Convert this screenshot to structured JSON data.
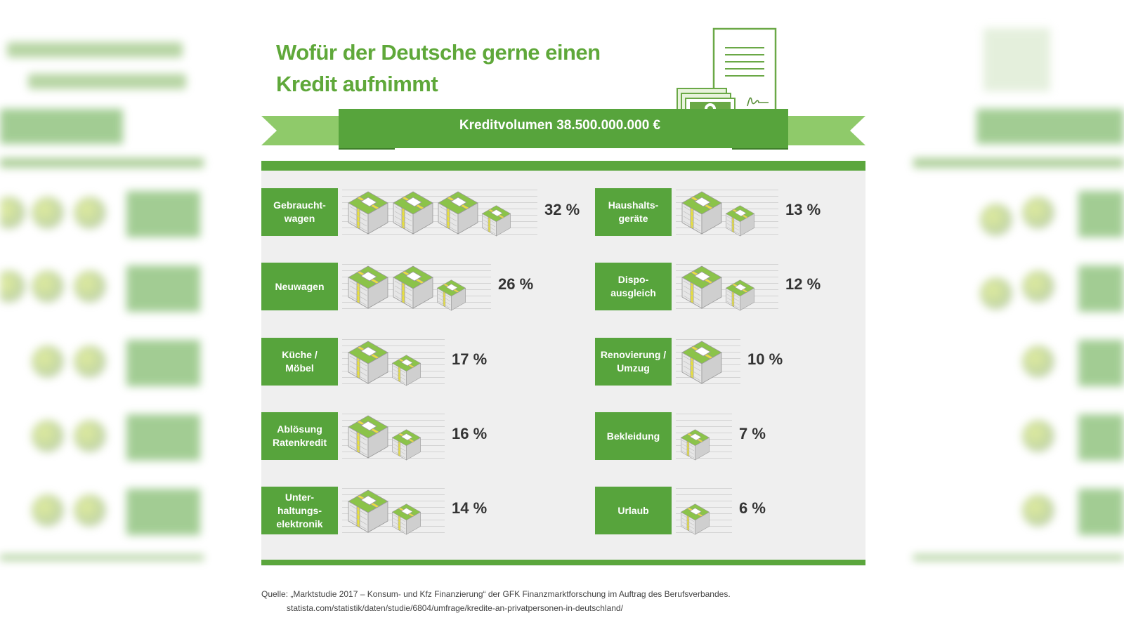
{
  "title_line1": "Wofür der Deutsche gerne einen",
  "title_line2": "Kredit aufnimmt",
  "banner": "Kreditvolumen 38.500.000.000 €",
  "colors": {
    "green": "#57a43c",
    "light_green": "#7bbd4a",
    "yellow": "#e9e13d",
    "panel": "#efefef"
  },
  "icon_name": "money-bundle-icon",
  "chart_data": {
    "type": "pictogram",
    "unit": "%",
    "total_label": "Kreditvolumen 38.500.000.000 €",
    "left": [
      {
        "label": "Gebraucht-\nwagen",
        "value": 32,
        "value_label": "32 %",
        "full": 3,
        "small": 1
      },
      {
        "label": "Neuwagen",
        "value": 26,
        "value_label": "26 %",
        "full": 2,
        "small": 1
      },
      {
        "label": "Küche /\nMöbel",
        "value": 17,
        "value_label": "17 %",
        "full": 1,
        "small": 1
      },
      {
        "label": "Ablösung\nRatenkredit",
        "value": 16,
        "value_label": "16 %",
        "full": 1,
        "small": 1
      },
      {
        "label": "Unter-\nhaltungs-\nelektronik",
        "value": 14,
        "value_label": "14 %",
        "full": 1,
        "small": 1
      }
    ],
    "right": [
      {
        "label": "Haushalts-\ngeräte",
        "value": 13,
        "value_label": "13 %",
        "full": 1,
        "small": 1
      },
      {
        "label": "Dispo-\nausgleich",
        "value": 12,
        "value_label": "12 %",
        "full": 1,
        "small": 1
      },
      {
        "label": "Renovierung /\nUmzug",
        "value": 10,
        "value_label": "10 %",
        "full": 1,
        "small": 0
      },
      {
        "label": "Bekleidung",
        "value": 7,
        "value_label": "7 %",
        "full": 0,
        "small": 1
      },
      {
        "label": "Urlaub",
        "value": 6,
        "value_label": "6 %",
        "full": 0,
        "small": 1
      }
    ]
  },
  "source_line1": "Quelle: „Marktstudie 2017 – Konsum- und Kfz Finanzierung“ der GFK Finanzmarktforschung im Auftrag des Berufsverbandes.",
  "source_line2": "statista.com/statistik/daten/studie/6804/umfrage/kredite-an-privatpersonen-in-deutschland/"
}
